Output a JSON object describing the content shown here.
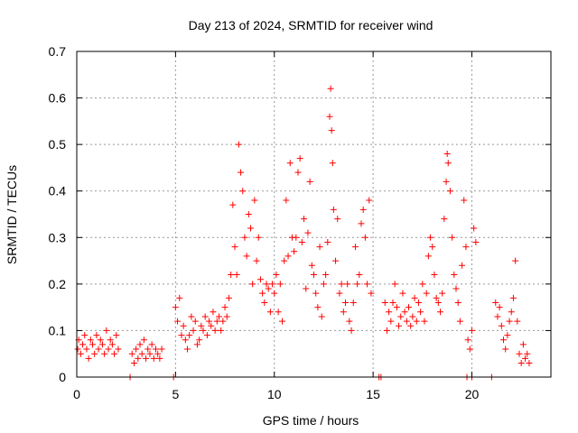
{
  "chart_data": {
    "type": "scatter",
    "title": "Day 213 of 2024, SRMTID for receiver wind",
    "xlabel": "GPS time / hours",
    "ylabel": "SRMTID / TECUs",
    "xlim": [
      0,
      24
    ],
    "ylim": [
      0,
      0.7
    ],
    "xticks": [
      0,
      5,
      10,
      15,
      20
    ],
    "xtick_labels": [
      "0",
      "5",
      "10",
      "15",
      "20"
    ],
    "yticks": [
      0,
      0.1,
      0.2,
      0.3,
      0.4,
      0.5,
      0.6,
      0.7
    ],
    "ytick_labels": [
      "0",
      "0.1",
      "0.2",
      "0.3",
      "0.4",
      "0.5",
      "0.6",
      "0.7"
    ],
    "grid": true,
    "marker": "+",
    "color": "#ff0000",
    "series": [
      {
        "name": "SRMTID",
        "points": [
          [
            0.05,
            0.06
          ],
          [
            0.1,
            0.08
          ],
          [
            0.2,
            0.05
          ],
          [
            0.3,
            0.07
          ],
          [
            0.4,
            0.09
          ],
          [
            0.5,
            0.06
          ],
          [
            0.6,
            0.04
          ],
          [
            0.7,
            0.08
          ],
          [
            0.8,
            0.07
          ],
          [
            0.9,
            0.05
          ],
          [
            1.0,
            0.09
          ],
          [
            1.1,
            0.06
          ],
          [
            1.2,
            0.08
          ],
          [
            1.3,
            0.07
          ],
          [
            1.4,
            0.05
          ],
          [
            1.5,
            0.1
          ],
          [
            1.6,
            0.06
          ],
          [
            1.7,
            0.08
          ],
          [
            1.8,
            0.07
          ],
          [
            1.9,
            0.05
          ],
          [
            2.0,
            0.09
          ],
          [
            2.1,
            0.06
          ],
          [
            2.8,
            0.05
          ],
          [
            2.9,
            0.03
          ],
          [
            3.0,
            0.06
          ],
          [
            3.1,
            0.04
          ],
          [
            3.2,
            0.07
          ],
          [
            3.3,
            0.05
          ],
          [
            3.4,
            0.08
          ],
          [
            3.5,
            0.04
          ],
          [
            3.6,
            0.06
          ],
          [
            3.7,
            0.05
          ],
          [
            3.8,
            0.07
          ],
          [
            3.9,
            0.04
          ],
          [
            4.0,
            0.06
          ],
          [
            4.1,
            0.05
          ],
          [
            4.2,
            0.04
          ],
          [
            4.3,
            0.06
          ],
          [
            5.0,
            0.15
          ],
          [
            5.1,
            0.12
          ],
          [
            5.2,
            0.17
          ],
          [
            5.3,
            0.09
          ],
          [
            5.4,
            0.11
          ],
          [
            5.5,
            0.08
          ],
          [
            5.6,
            0.06
          ],
          [
            5.7,
            0.09
          ],
          [
            5.8,
            0.13
          ],
          [
            5.9,
            0.1
          ],
          [
            6.0,
            0.12
          ],
          [
            6.1,
            0.07
          ],
          [
            6.2,
            0.08
          ],
          [
            6.3,
            0.11
          ],
          [
            6.4,
            0.1
          ],
          [
            6.5,
            0.13
          ],
          [
            6.6,
            0.09
          ],
          [
            6.7,
            0.12
          ],
          [
            6.8,
            0.11
          ],
          [
            6.9,
            0.14
          ],
          [
            7.0,
            0.1
          ],
          [
            7.1,
            0.12
          ],
          [
            7.2,
            0.13
          ],
          [
            7.3,
            0.1
          ],
          [
            7.4,
            0.12
          ],
          [
            7.5,
            0.15
          ],
          [
            7.6,
            0.13
          ],
          [
            7.7,
            0.17
          ],
          [
            7.8,
            0.22
          ],
          [
            7.9,
            0.37
          ],
          [
            8.0,
            0.28
          ],
          [
            8.1,
            0.22
          ],
          [
            8.2,
            0.5
          ],
          [
            8.3,
            0.44
          ],
          [
            8.4,
            0.4
          ],
          [
            8.5,
            0.3
          ],
          [
            8.6,
            0.26
          ],
          [
            8.7,
            0.35
          ],
          [
            8.8,
            0.32
          ],
          [
            8.9,
            0.2
          ],
          [
            9.0,
            0.38
          ],
          [
            9.1,
            0.25
          ],
          [
            9.2,
            0.3
          ],
          [
            9.3,
            0.21
          ],
          [
            9.4,
            0.18
          ],
          [
            9.5,
            0.16
          ],
          [
            9.6,
            0.2
          ],
          [
            9.7,
            0.19
          ],
          [
            9.8,
            0.14
          ],
          [
            9.9,
            0.2
          ],
          [
            10.0,
            0.18
          ],
          [
            10.1,
            0.22
          ],
          [
            10.2,
            0.14
          ],
          [
            10.3,
            0.2
          ],
          [
            10.4,
            0.12
          ],
          [
            10.5,
            0.25
          ],
          [
            10.6,
            0.38
          ],
          [
            10.7,
            0.26
          ],
          [
            10.8,
            0.46
          ],
          [
            10.9,
            0.3
          ],
          [
            11.0,
            0.27
          ],
          [
            11.1,
            0.3
          ],
          [
            11.2,
            0.44
          ],
          [
            11.3,
            0.47
          ],
          [
            11.4,
            0.29
          ],
          [
            11.5,
            0.34
          ],
          [
            11.6,
            0.19
          ],
          [
            11.7,
            0.31
          ],
          [
            11.8,
            0.42
          ],
          [
            11.9,
            0.24
          ],
          [
            12.0,
            0.22
          ],
          [
            12.1,
            0.18
          ],
          [
            12.2,
            0.15
          ],
          [
            12.3,
            0.28
          ],
          [
            12.4,
            0.13
          ],
          [
            12.5,
            0.2
          ],
          [
            12.6,
            0.22
          ],
          [
            12.7,
            0.29
          ],
          [
            12.8,
            0.56
          ],
          [
            12.85,
            0.62
          ],
          [
            12.9,
            0.53
          ],
          [
            12.95,
            0.46
          ],
          [
            13.0,
            0.36
          ],
          [
            13.1,
            0.25
          ],
          [
            13.2,
            0.34
          ],
          [
            13.3,
            0.18
          ],
          [
            13.4,
            0.2
          ],
          [
            13.5,
            0.14
          ],
          [
            13.6,
            0.16
          ],
          [
            13.7,
            0.2
          ],
          [
            13.8,
            0.12
          ],
          [
            13.9,
            0.1
          ],
          [
            14.0,
            0.16
          ],
          [
            14.1,
            0.28
          ],
          [
            14.2,
            0.2
          ],
          [
            14.3,
            0.22
          ],
          [
            14.4,
            0.33
          ],
          [
            14.5,
            0.36
          ],
          [
            14.6,
            0.3
          ],
          [
            14.7,
            0.2
          ],
          [
            14.8,
            0.38
          ],
          [
            14.9,
            0.18
          ],
          [
            15.6,
            0.16
          ],
          [
            15.7,
            0.1
          ],
          [
            15.8,
            0.14
          ],
          [
            15.9,
            0.12
          ],
          [
            16.0,
            0.16
          ],
          [
            16.1,
            0.2
          ],
          [
            16.2,
            0.15
          ],
          [
            16.3,
            0.11
          ],
          [
            16.4,
            0.13
          ],
          [
            16.5,
            0.18
          ],
          [
            16.6,
            0.14
          ],
          [
            16.7,
            0.12
          ],
          [
            16.8,
            0.15
          ],
          [
            16.9,
            0.11
          ],
          [
            17.0,
            0.13
          ],
          [
            17.1,
            0.17
          ],
          [
            17.2,
            0.12
          ],
          [
            17.3,
            0.16
          ],
          [
            17.4,
            0.14
          ],
          [
            17.5,
            0.2
          ],
          [
            17.6,
            0.12
          ],
          [
            17.7,
            0.18
          ],
          [
            17.8,
            0.26
          ],
          [
            17.9,
            0.3
          ],
          [
            18.0,
            0.28
          ],
          [
            18.1,
            0.22
          ],
          [
            18.2,
            0.17
          ],
          [
            18.3,
            0.16
          ],
          [
            18.4,
            0.14
          ],
          [
            18.5,
            0.18
          ],
          [
            18.6,
            0.34
          ],
          [
            18.7,
            0.42
          ],
          [
            18.75,
            0.48
          ],
          [
            18.8,
            0.46
          ],
          [
            18.9,
            0.4
          ],
          [
            19.0,
            0.3
          ],
          [
            19.1,
            0.22
          ],
          [
            19.2,
            0.19
          ],
          [
            19.3,
            0.16
          ],
          [
            19.4,
            0.12
          ],
          [
            19.5,
            0.24
          ],
          [
            19.6,
            0.38
          ],
          [
            19.7,
            0.28
          ],
          [
            19.8,
            0.08
          ],
          [
            19.9,
            0.06
          ],
          [
            20.0,
            0.1
          ],
          [
            20.1,
            0.32
          ],
          [
            20.2,
            0.29
          ],
          [
            21.2,
            0.16
          ],
          [
            21.3,
            0.13
          ],
          [
            21.4,
            0.15
          ],
          [
            21.5,
            0.11
          ],
          [
            21.6,
            0.08
          ],
          [
            21.7,
            0.06
          ],
          [
            21.8,
            0.09
          ],
          [
            21.9,
            0.12
          ],
          [
            22.0,
            0.14
          ],
          [
            22.1,
            0.17
          ],
          [
            22.2,
            0.25
          ],
          [
            22.3,
            0.12
          ],
          [
            22.4,
            0.05
          ],
          [
            22.5,
            0.03
          ],
          [
            22.6,
            0.07
          ],
          [
            22.7,
            0.04
          ],
          [
            22.8,
            0.05
          ],
          [
            22.9,
            0.03
          ],
          [
            2.7,
            0.0
          ],
          [
            4.9,
            0.0
          ],
          [
            15.3,
            0.0
          ],
          [
            15.4,
            0.0
          ],
          [
            19.75,
            0.0
          ],
          [
            20.0,
            0.0
          ],
          [
            21.0,
            0.0
          ]
        ]
      }
    ]
  }
}
